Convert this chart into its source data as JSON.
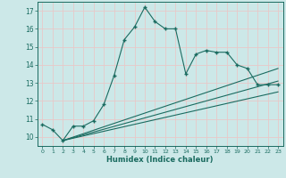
{
  "xlabel": "Humidex (Indice chaleur)",
  "background_color": "#cce8e8",
  "grid_color": "#e8c8c8",
  "line_color": "#1a6b60",
  "xlim": [
    -0.5,
    23.5
  ],
  "ylim": [
    9.5,
    17.5
  ],
  "yticks": [
    10,
    11,
    12,
    13,
    14,
    15,
    16,
    17
  ],
  "xticks": [
    0,
    1,
    2,
    3,
    4,
    5,
    6,
    7,
    8,
    9,
    10,
    11,
    12,
    13,
    14,
    15,
    16,
    17,
    18,
    19,
    20,
    21,
    22,
    23
  ],
  "main_line_x": [
    0,
    1,
    2,
    3,
    4,
    5,
    6,
    7,
    8,
    9,
    10,
    11,
    12,
    13,
    14,
    15,
    16,
    17,
    18,
    19,
    20,
    21,
    22,
    23
  ],
  "main_line_y": [
    10.7,
    10.4,
    9.8,
    10.6,
    10.6,
    10.9,
    11.8,
    13.4,
    15.4,
    16.1,
    17.2,
    16.4,
    16.0,
    16.0,
    13.5,
    14.6,
    14.8,
    14.7,
    14.7,
    14.0,
    13.8,
    12.9,
    12.9,
    12.9
  ],
  "line2_x": [
    2,
    23
  ],
  "line2_y": [
    9.8,
    13.8
  ],
  "line3_x": [
    2,
    23
  ],
  "line3_y": [
    9.8,
    13.1
  ],
  "line4_x": [
    2,
    23
  ],
  "line4_y": [
    9.8,
    12.5
  ]
}
